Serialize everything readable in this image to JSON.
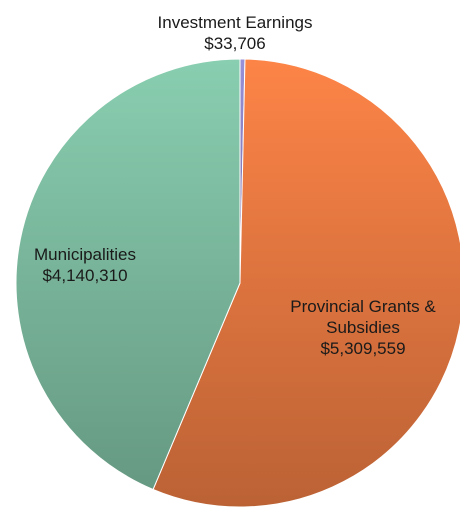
{
  "chart_data": {
    "type": "pie",
    "title": "",
    "slices": [
      {
        "name": "Investment Earnings",
        "value": 33706,
        "label_lines": [
          "Investment Earnings"
        ],
        "value_text": "$33,706",
        "color": "#8e86c9"
      },
      {
        "name": "Provincial Grants & Subsidies",
        "value": 5309559,
        "label_lines": [
          "Provincial Grants &",
          "Subsidies"
        ],
        "value_text": "$5,309,559",
        "color": "#ea7a42"
      },
      {
        "name": "Municipalities",
        "value": 4140310,
        "label_lines": [
          "Municipalities"
        ],
        "value_text": "$4,140,310",
        "color": "#7fbfa3"
      }
    ],
    "start_angle_deg": 0,
    "direction": "clockwise",
    "legend": "none"
  }
}
